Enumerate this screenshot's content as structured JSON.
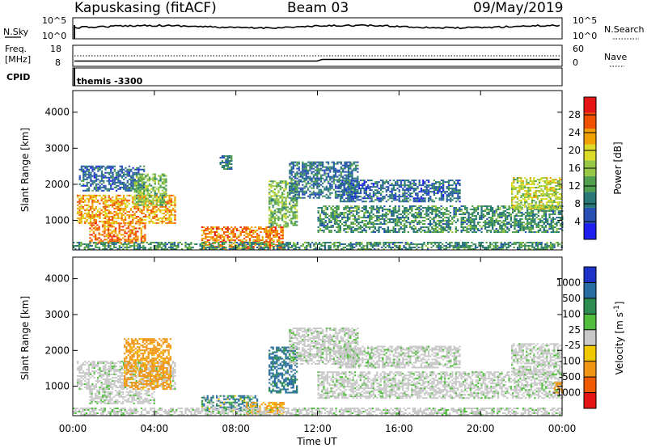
{
  "header": {
    "station": "Kapuskasing (fitACF)",
    "beam": "Beam 03",
    "date": "09/May/2019"
  },
  "top_panels": {
    "nsky_label": "N.Sky",
    "nsky_ticks": [
      "10^5",
      "10^0"
    ],
    "nsearch_label": "N.Search",
    "nsearch_ticks": [
      "10^5",
      "10^0"
    ],
    "freq_label": "Freq.",
    "freq_unit": "[MHz]",
    "freq_ticks": [
      "18",
      "8"
    ],
    "nave_label": "Nave",
    "nave_ticks": [
      "60",
      "0"
    ],
    "cpid_label": "CPID",
    "cpid_value": "themis -3300"
  },
  "chart_data": [
    {
      "type": "heatmap",
      "panel": "power",
      "xlabel": "",
      "ylabel": "Slant Range [km]",
      "x_ticks": [
        "00:00",
        "04:00",
        "08:00",
        "12:00",
        "16:00",
        "20:00",
        "00:00"
      ],
      "y_ticks": [
        1000,
        2000,
        3000,
        4000
      ],
      "xlim_hours": [
        0,
        24
      ],
      "ylim_km": [
        180,
        4600
      ],
      "colorbar": {
        "label": "Power [dB]",
        "ticks": [
          4,
          8,
          12,
          16,
          20,
          24,
          28
        ],
        "range": [
          0,
          32
        ],
        "colors": [
          "#1e1ef0",
          "#2850b4",
          "#287878",
          "#50a050",
          "#96c846",
          "#dcdc28",
          "#f0a000",
          "#f05000",
          "#e61414"
        ]
      },
      "echo_regions": [
        {
          "t0": 0.2,
          "t1": 5.0,
          "r0": 900,
          "r1": 1700,
          "level": 24
        },
        {
          "t0": 0.3,
          "t1": 3.5,
          "r0": 1800,
          "r1": 2500,
          "level": 6
        },
        {
          "t0": 0.8,
          "t1": 3.5,
          "r0": 350,
          "r1": 900,
          "level": 26
        },
        {
          "t0": 3.0,
          "t1": 4.6,
          "r0": 1400,
          "r1": 2300,
          "level": 14
        },
        {
          "t0": 6.3,
          "t1": 10.3,
          "r0": 200,
          "r1": 800,
          "level": 26
        },
        {
          "t0": 7.2,
          "t1": 7.8,
          "r0": 2400,
          "r1": 2800,
          "level": 8
        },
        {
          "t0": 9.6,
          "t1": 11.0,
          "r0": 800,
          "r1": 2100,
          "level": 14
        },
        {
          "t0": 10.6,
          "t1": 14.0,
          "r0": 1600,
          "r1": 2600,
          "level": 7
        },
        {
          "t0": 12.0,
          "t1": 24.0,
          "r0": 650,
          "r1": 1400,
          "level": 10
        },
        {
          "t0": 13.0,
          "t1": 19.0,
          "r0": 1500,
          "r1": 2100,
          "level": 6
        },
        {
          "t0": 21.5,
          "t1": 24.0,
          "r0": 1300,
          "r1": 2200,
          "level": 18
        },
        {
          "t0": 0.0,
          "t1": 24.0,
          "r0": 180,
          "r1": 400,
          "level": 10
        }
      ]
    },
    {
      "type": "heatmap",
      "panel": "velocity",
      "xlabel": "Time UT",
      "ylabel": "Slant Range [km]",
      "x_ticks": [
        "00:00",
        "04:00",
        "08:00",
        "12:00",
        "16:00",
        "20:00",
        "00:00"
      ],
      "y_ticks": [
        1000,
        2000,
        3000,
        4000
      ],
      "xlim_hours": [
        0,
        24
      ],
      "ylim_km": [
        180,
        4600
      ],
      "colorbar": {
        "label": "Velocity [m s^-1]",
        "ticks": [
          "1000",
          "500",
          "100",
          "25",
          "-25",
          "-100",
          "-500",
          "-1000"
        ],
        "colors": [
          "#1e32c8",
          "#286ea0",
          "#2d8c50",
          "#50be3c",
          "#c8c8c8",
          "#f0c800",
          "#f09614",
          "#f05a00",
          "#e61414"
        ]
      },
      "echo_regions": [
        {
          "t0": 0.2,
          "t1": 5.0,
          "r0": 900,
          "r1": 1700,
          "v": 0
        },
        {
          "t0": 2.5,
          "t1": 4.8,
          "r0": 900,
          "r1": 2300,
          "v": -200
        },
        {
          "t0": 0.8,
          "t1": 4.0,
          "r0": 500,
          "r1": 900,
          "v": 0
        },
        {
          "t0": 6.3,
          "t1": 9.0,
          "r0": 300,
          "r1": 750,
          "v": 80
        },
        {
          "t0": 8.5,
          "t1": 10.3,
          "r0": 200,
          "r1": 550,
          "v": -150
        },
        {
          "t0": 9.6,
          "t1": 11.0,
          "r0": 800,
          "r1": 2100,
          "v": 150
        },
        {
          "t0": 10.6,
          "t1": 14.0,
          "r0": 1600,
          "r1": 2600,
          "v": 0
        },
        {
          "t0": 12.0,
          "t1": 24.0,
          "r0": 650,
          "r1": 1400,
          "v": 0
        },
        {
          "t0": 13.0,
          "t1": 19.0,
          "r0": 1500,
          "r1": 2100,
          "v": 0
        },
        {
          "t0": 21.5,
          "t1": 24.0,
          "r0": 1300,
          "r1": 2200,
          "v": 0
        },
        {
          "t0": 23.6,
          "t1": 24.0,
          "r0": 800,
          "r1": 1100,
          "v": -300
        },
        {
          "t0": 0.0,
          "t1": 24.0,
          "r0": 180,
          "r1": 400,
          "v": 0
        }
      ]
    }
  ]
}
